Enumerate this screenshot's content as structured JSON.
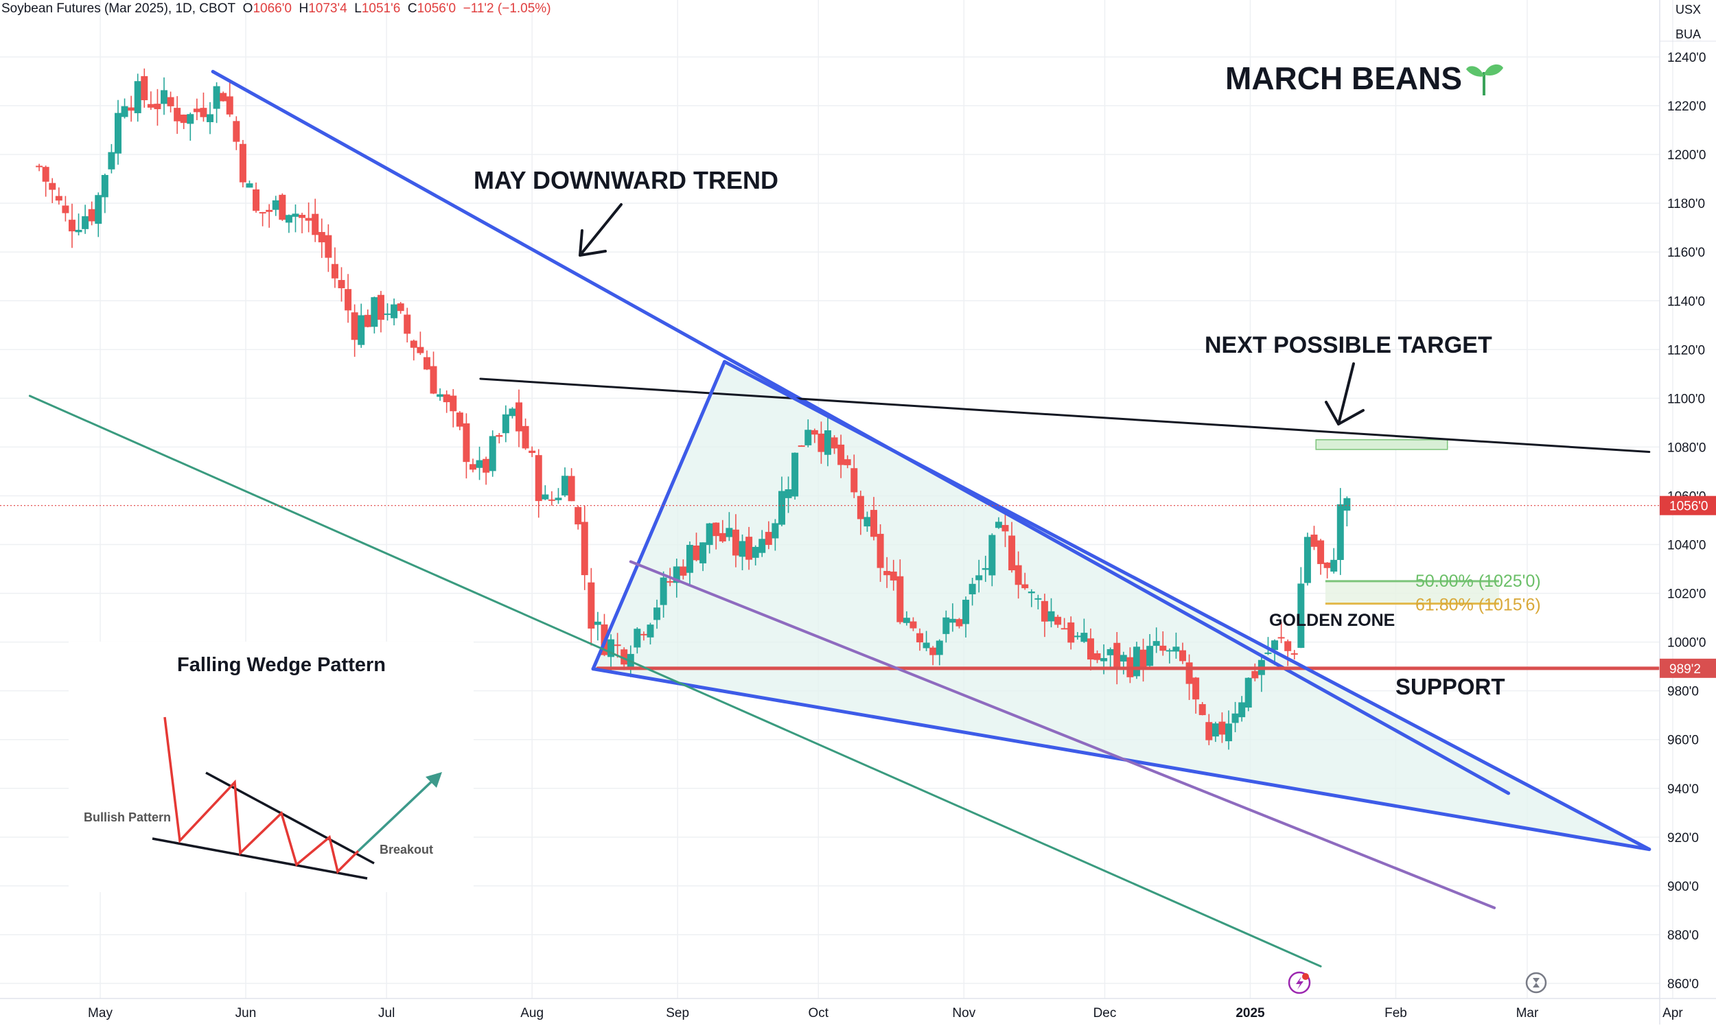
{
  "header": {
    "symbol": "Soybean Futures (Mar 2025), 1D, CBOT",
    "open_label": "O",
    "open": "1066'0",
    "high_label": "H",
    "high": "1073'4",
    "low_label": "L",
    "low": "1051'6",
    "close_label": "C",
    "close": "1056'0",
    "change": "−11'2 (−1.05%)"
  },
  "units": {
    "currency": "USX",
    "exchange": "BUA"
  },
  "colors": {
    "up": "#26a69a",
    "down": "#ef5350",
    "wedge": "#3d5be8",
    "support": "#d94f4f",
    "channel": "#3a9b7f",
    "purple_line": "#8e6bbf",
    "resistance": "#131722",
    "fill": "#e3f3ef",
    "fib50": "#7cc47a",
    "fib618": "#e2b84a"
  },
  "annotations": {
    "title": "MARCH BEANS",
    "title_icon": "seedling-icon",
    "downtrend": "MAY DOWNWARD TREND",
    "target": "NEXT POSSIBLE TARGET",
    "golden_zone": "GOLDEN ZONE",
    "support": "SUPPORT",
    "fib_50": "50.00% (1025'0)",
    "fib_618": "61.80% (1015'6)"
  },
  "inset": {
    "title": "Falling Wedge Pattern",
    "bullish": "Bullish Pattern",
    "breakout": "Breakout"
  },
  "chart_data": {
    "type": "candlestick",
    "title": "Soybean Futures (Mar 2025), 1D, CBOT",
    "y_unit": "USX",
    "ylim": [
      854,
      1250
    ],
    "y_ticks": [
      "1240'0",
      "1220'0",
      "1200'0",
      "1180'0",
      "1160'0",
      "1140'0",
      "1120'0",
      "1100'0",
      "1080'0",
      "1060'0",
      "1040'0",
      "1020'0",
      "1000'0",
      "980'0",
      "960'0",
      "940'0",
      "920'0",
      "900'0",
      "880'0",
      "860'0"
    ],
    "y_tick_values": [
      1240,
      1220,
      1200,
      1180,
      1160,
      1140,
      1120,
      1100,
      1080,
      1060,
      1040,
      1020,
      1000,
      980,
      960,
      940,
      920,
      900,
      880,
      860
    ],
    "x_ticks": [
      "May",
      "Jun",
      "Jul",
      "Aug",
      "Sep",
      "Oct",
      "Nov",
      "Dec",
      "2025",
      "Feb",
      "Mar",
      "Apr"
    ],
    "x_tick_dates": [
      "2024-05-01",
      "2024-06-01",
      "2024-07-01",
      "2024-08-01",
      "2024-09-01",
      "2024-10-01",
      "2024-11-01",
      "2024-12-01",
      "2025-01-01",
      "2025-02-01",
      "2025-03-01",
      "2025-04-01"
    ],
    "price_labels": [
      {
        "text": "1056'0",
        "value": 1056,
        "color": "#e03e3e"
      },
      {
        "text": "989'2",
        "value": 989.25,
        "color": "#d94f4f"
      }
    ],
    "current_price": 1056,
    "series": [
      {
        "name": "",
        "anchors": [
          [
            "2024-04-18",
            1195
          ],
          [
            "2024-04-24",
            1172
          ],
          [
            "2024-04-30",
            1178
          ],
          [
            "2024-05-06",
            1225
          ],
          [
            "2024-05-13",
            1222
          ],
          [
            "2024-05-20",
            1215
          ],
          [
            "2024-05-27",
            1228
          ],
          [
            "2024-06-03",
            1175
          ],
          [
            "2024-06-10",
            1180
          ],
          [
            "2024-06-17",
            1165
          ],
          [
            "2024-06-24",
            1130
          ],
          [
            "2024-07-01",
            1138
          ],
          [
            "2024-07-08",
            1120
          ],
          [
            "2024-07-15",
            1090
          ],
          [
            "2024-07-21",
            1068
          ],
          [
            "2024-07-28",
            1095
          ],
          [
            "2024-08-04",
            1055
          ],
          [
            "2024-08-09",
            1070
          ],
          [
            "2024-08-14",
            1005
          ],
          [
            "2024-08-20",
            996
          ],
          [
            "2024-08-26",
            1012
          ],
          [
            "2024-09-01",
            1030
          ],
          [
            "2024-09-08",
            1046
          ],
          [
            "2024-09-15",
            1036
          ],
          [
            "2024-09-21",
            1048
          ],
          [
            "2024-09-29",
            1092
          ],
          [
            "2024-10-06",
            1072
          ],
          [
            "2024-10-12",
            1042
          ],
          [
            "2024-10-19",
            1012
          ],
          [
            "2024-10-25",
            1000
          ],
          [
            "2024-10-31",
            1010
          ],
          [
            "2024-11-09",
            1045
          ],
          [
            "2024-11-15",
            1018
          ],
          [
            "2024-11-21",
            1010
          ],
          [
            "2024-11-28",
            994
          ],
          [
            "2024-12-06",
            992
          ],
          [
            "2024-12-13",
            996
          ],
          [
            "2024-12-18",
            990
          ],
          [
            "2024-12-23",
            955
          ],
          [
            "2024-12-29",
            975
          ],
          [
            "2025-01-04",
            995
          ],
          [
            "2025-01-08",
            1000
          ],
          [
            "2025-01-10",
            992
          ],
          [
            "2025-01-13",
            1045
          ],
          [
            "2025-01-15",
            1038
          ],
          [
            "2025-01-17",
            1022
          ],
          [
            "2025-01-20",
            1050
          ],
          [
            "2025-01-21",
            1066
          ],
          [
            "2025-01-22",
            1056
          ]
        ]
      }
    ],
    "trendlines": [
      {
        "name": "May downward trend",
        "from": [
          "2024-05-25",
          1234
        ],
        "to": [
          "2025-02-25",
          938
        ]
      },
      {
        "name": "Resistance",
        "from": [
          "2024-07-21",
          1108
        ],
        "to": [
          "2025-03-27",
          1078
        ]
      },
      {
        "name": "Support",
        "from": [
          "2024-08-15",
          989.25
        ],
        "to": [
          "2025-04-30",
          989.25
        ]
      },
      {
        "name": "Wedge lower",
        "from": [
          "2024-08-14",
          989
        ],
        "to": [
          "2025-03-27",
          915
        ]
      },
      {
        "name": "Wedge upper",
        "from": [
          "2024-09-11",
          1115
        ],
        "to": [
          "2025-03-27",
          915
        ]
      },
      {
        "name": "Wedge left",
        "from": [
          "2024-08-14",
          989
        ],
        "to": [
          "2024-09-11",
          1115
        ]
      },
      {
        "name": "Channel",
        "from": [
          "2024-04-16",
          1101
        ],
        "to": [
          "2025-01-16",
          867
        ]
      },
      {
        "name": "Parallel",
        "from": [
          "2024-08-22",
          1033
        ],
        "to": [
          "2025-02-22",
          891
        ]
      }
    ],
    "zones": [
      {
        "name": "Target zone",
        "from": [
          "2025-01-15",
          1083
        ],
        "to": [
          "2025-02-12",
          1079
        ]
      },
      {
        "name": "Golden zone",
        "from": [
          "2025-01-17",
          1025
        ],
        "to": [
          "2025-02-23",
          1015.75
        ]
      }
    ],
    "fibonacci": [
      {
        "level": "50.00%",
        "value": 1025
      },
      {
        "level": "61.80%",
        "value": 1015.75
      }
    ]
  }
}
